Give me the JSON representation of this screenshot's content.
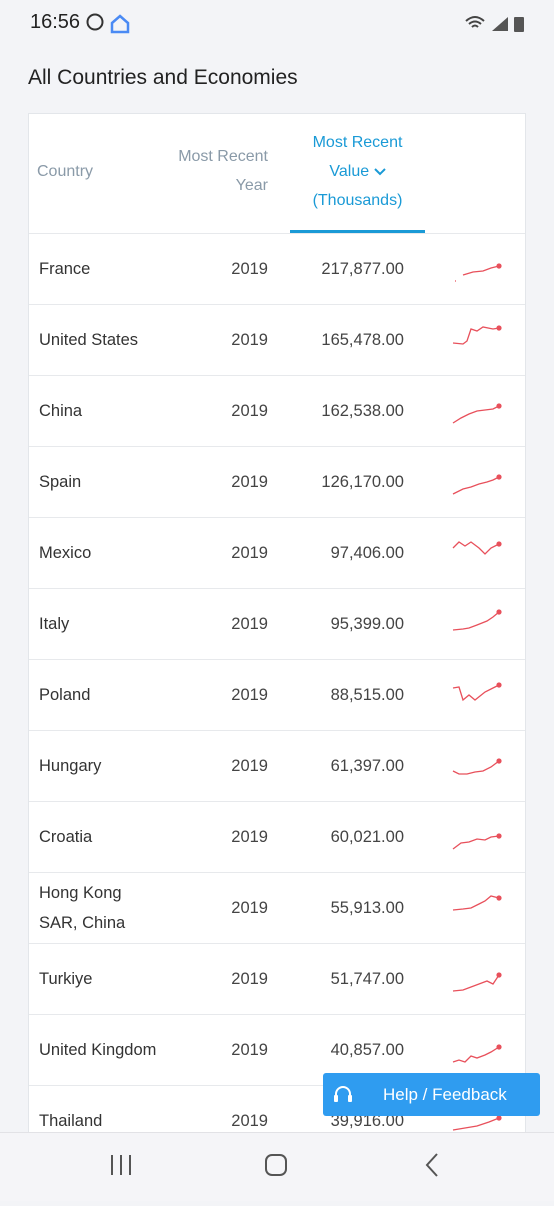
{
  "status_bar": {
    "time": "16:56"
  },
  "page": {
    "title": "All Countries and Economies"
  },
  "table": {
    "headers": {
      "country": "Country",
      "year": [
        "Most Recent",
        "Year"
      ],
      "value": [
        "Most Recent",
        "Value",
        "(Thousands)"
      ]
    },
    "rows": [
      [
        "France",
        "2019",
        "217,877.00"
      ],
      [
        "United States",
        "2019",
        "165,478.00"
      ],
      [
        "China",
        "2019",
        "162,538.00"
      ],
      [
        "Spain",
        "2019",
        "126,170.00"
      ],
      [
        "Mexico",
        "2019",
        "97,406.00"
      ],
      [
        "Italy",
        "2019",
        "95,399.00"
      ],
      [
        "Poland",
        "2019",
        "88,515.00"
      ],
      [
        "Hungary",
        "2019",
        "61,397.00"
      ],
      [
        "Croatia",
        "2019",
        "60,021.00"
      ],
      [
        "Hong Kong SAR, China",
        "2019",
        "55,913.00"
      ],
      [
        "Turkiye",
        "2019",
        "51,747.00"
      ],
      [
        "United Kingdom",
        "2019",
        "40,857.00"
      ],
      [
        "Thailand",
        "2019",
        "39,916.00"
      ]
    ]
  },
  "help_button": {
    "label": "Help / Feedback"
  }
}
